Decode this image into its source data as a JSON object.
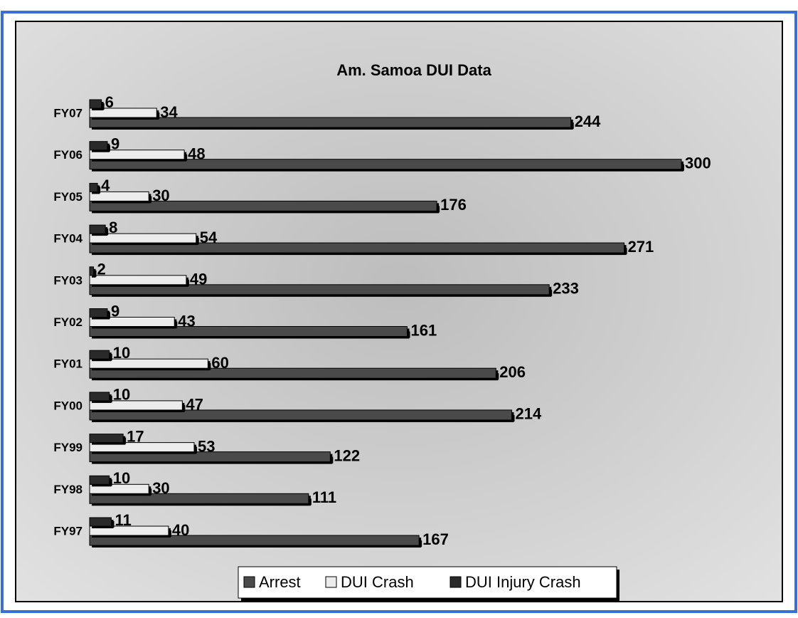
{
  "chart_data": {
    "type": "bar",
    "orientation": "horizontal",
    "title": "Am. Samoa DUI Data",
    "categories": [
      "FY07",
      "FY06",
      "FY05",
      "FY04",
      "FY03",
      "FY02",
      "FY01",
      "FY00",
      "FY99",
      "FY98",
      "FY97"
    ],
    "series": [
      {
        "name": "Arrest",
        "color": "#4a4a4a",
        "values": [
          244,
          300,
          176,
          271,
          233,
          161,
          206,
          214,
          122,
          111,
          167
        ]
      },
      {
        "name": "DUI Crash",
        "color": "#ececec",
        "values": [
          34,
          48,
          30,
          54,
          49,
          43,
          60,
          47,
          53,
          30,
          40
        ]
      },
      {
        "name": "DUI Injury Crash",
        "color": "#2a2a2a",
        "values": [
          6,
          9,
          4,
          8,
          2,
          9,
          10,
          10,
          17,
          10,
          11
        ]
      }
    ],
    "xlim": [
      0,
      300
    ],
    "legend": "bottom"
  }
}
